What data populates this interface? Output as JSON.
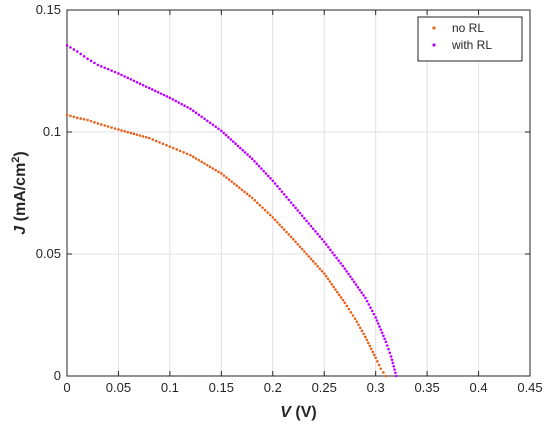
{
  "chart_data": {
    "type": "scatter",
    "title": "",
    "xlabel": {
      "var": "V",
      "unit": " (V)"
    },
    "ylabel": {
      "var": "J",
      "unit_pre": " (mA/cm",
      "unit_sup": "2",
      "unit_post": ")"
    },
    "xlim": [
      0,
      0.45
    ],
    "ylim": [
      0,
      0.15
    ],
    "xticks": [
      0,
      0.05,
      0.1,
      0.15,
      0.2,
      0.25,
      0.3,
      0.35,
      0.4,
      0.45
    ],
    "xtick_labels": [
      "0",
      "0.05",
      "0.1",
      "0.15",
      "0.2",
      "0.25",
      "0.3",
      "0.35",
      "0.4",
      "0.45"
    ],
    "yticks": [
      0,
      0.05,
      0.1,
      0.15
    ],
    "ytick_labels": [
      "0",
      "0.05",
      "0.1",
      "0.15"
    ],
    "grid": true,
    "legend_position": "top-right",
    "series": [
      {
        "name": "no RL",
        "color": "#e8601c",
        "points": [
          [
            0.0,
            0.107
          ],
          [
            0.01,
            0.1058
          ],
          [
            0.02,
            0.1049
          ],
          [
            0.03,
            0.1035
          ],
          [
            0.05,
            0.101
          ],
          [
            0.08,
            0.0975
          ],
          [
            0.1,
            0.094
          ],
          [
            0.12,
            0.0905
          ],
          [
            0.15,
            0.083
          ],
          [
            0.18,
            0.073
          ],
          [
            0.2,
            0.065
          ],
          [
            0.22,
            0.056
          ],
          [
            0.25,
            0.042
          ],
          [
            0.27,
            0.03
          ],
          [
            0.28,
            0.0235
          ],
          [
            0.29,
            0.016
          ],
          [
            0.3,
            0.0075
          ],
          [
            0.305,
            0.003
          ],
          [
            0.31,
            0.0
          ]
        ]
      },
      {
        "name": "with RL",
        "color": "#bf00ff",
        "points": [
          [
            0.0,
            0.1355
          ],
          [
            0.01,
            0.133
          ],
          [
            0.02,
            0.13
          ],
          [
            0.03,
            0.1275
          ],
          [
            0.05,
            0.124
          ],
          [
            0.08,
            0.118
          ],
          [
            0.1,
            0.114
          ],
          [
            0.12,
            0.1095
          ],
          [
            0.15,
            0.1005
          ],
          [
            0.18,
            0.089
          ],
          [
            0.2,
            0.08
          ],
          [
            0.22,
            0.07
          ],
          [
            0.25,
            0.055
          ],
          [
            0.27,
            0.044
          ],
          [
            0.29,
            0.032
          ],
          [
            0.3,
            0.024
          ],
          [
            0.31,
            0.014
          ],
          [
            0.315,
            0.008
          ],
          [
            0.32,
            0.0
          ]
        ]
      }
    ]
  }
}
